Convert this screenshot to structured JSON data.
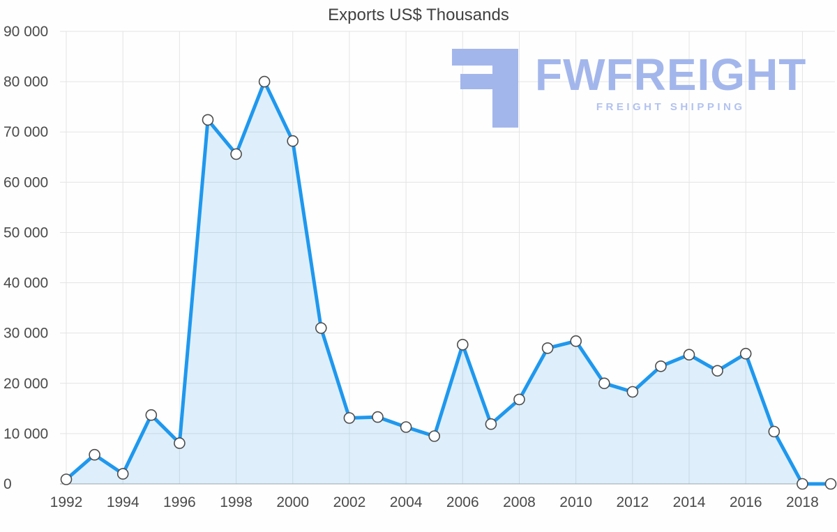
{
  "watermark": {
    "brand": "FWFREIGHT",
    "tagline": "FREIGHT SHIPPING"
  },
  "chart_data": {
    "type": "area",
    "title": "Exports US$ Thousands",
    "xlabel": "",
    "ylabel": "",
    "x": [
      1992,
      1993,
      1994,
      1995,
      1996,
      1997,
      1998,
      1999,
      2000,
      2001,
      2002,
      2003,
      2004,
      2005,
      2006,
      2007,
      2008,
      2009,
      2010,
      2011,
      2012,
      2013,
      2014,
      2015,
      2016,
      2017,
      2018,
      2019
    ],
    "series": [
      {
        "name": "Exports US$ Thousands",
        "values": [
          900,
          5800,
          2000,
          13700,
          8100,
          72400,
          65600,
          80000,
          68200,
          31000,
          13100,
          13300,
          11300,
          9500,
          27700,
          11900,
          16800,
          27000,
          28400,
          20000,
          18300,
          23400,
          25700,
          22500,
          25900,
          10400,
          0,
          0
        ]
      }
    ],
    "ylim": [
      0,
      90000
    ],
    "grid": true,
    "legend_position": "none",
    "y_ticks": [
      {
        "value": 0,
        "label": "0"
      },
      {
        "value": 10000,
        "label": "10 000"
      },
      {
        "value": 20000,
        "label": "20 000"
      },
      {
        "value": 30000,
        "label": "30 000"
      },
      {
        "value": 40000,
        "label": "40 000"
      },
      {
        "value": 50000,
        "label": "50 000"
      },
      {
        "value": 60000,
        "label": "60 000"
      },
      {
        "value": 70000,
        "label": "70 000"
      },
      {
        "value": 80000,
        "label": "80 000"
      },
      {
        "value": 90000,
        "label": "90 000"
      }
    ],
    "x_ticks": [
      {
        "value": 1992,
        "label": "1992"
      },
      {
        "value": 1994,
        "label": "1994"
      },
      {
        "value": 1996,
        "label": "1996"
      },
      {
        "value": 1998,
        "label": "1998"
      },
      {
        "value": 2000,
        "label": "2000"
      },
      {
        "value": 2002,
        "label": "2002"
      },
      {
        "value": 2004,
        "label": "2004"
      },
      {
        "value": 2006,
        "label": "2006"
      },
      {
        "value": 2008,
        "label": "2008"
      },
      {
        "value": 2010,
        "label": "2010"
      },
      {
        "value": 2012,
        "label": "2012"
      },
      {
        "value": 2014,
        "label": "2014"
      },
      {
        "value": 2016,
        "label": "2016"
      },
      {
        "value": 2018,
        "label": "2018"
      }
    ],
    "colors": {
      "line": "#1f98ee",
      "fill": "rgba(30,150,236,0.14)",
      "marker_fill": "#ffffff",
      "marker_stroke": "#4c4c4c",
      "grid": "#e4e4e4",
      "axis": "#a6a6a6",
      "tick_text": "#4a4a4a",
      "title_text": "#404040",
      "watermark": "#a3b6ec",
      "watermark_sub": "#b2c2f0"
    }
  }
}
